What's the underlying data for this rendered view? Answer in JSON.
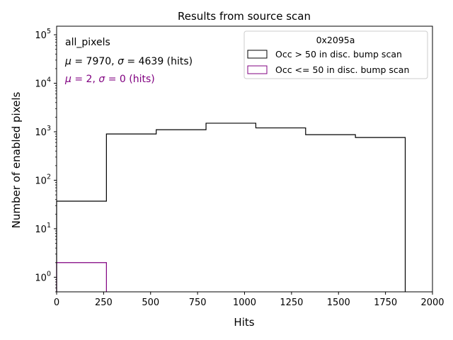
{
  "chart_data": {
    "type": "histogram",
    "title": "Results from source scan",
    "xlabel": "Hits",
    "ylabel": "Number of enabled pixels",
    "xlim": [
      0,
      2000
    ],
    "ylim": [
      0.5,
      150000
    ],
    "yscale": "log",
    "x_ticks": [
      0,
      250,
      500,
      750,
      1000,
      1250,
      1500,
      1750,
      2000
    ],
    "y_ticks": [
      {
        "value": 1,
        "base": "10",
        "exp": "0"
      },
      {
        "value": 10,
        "base": "10",
        "exp": "1"
      },
      {
        "value": 100,
        "base": "10",
        "exp": "2"
      },
      {
        "value": 1000,
        "base": "10",
        "exp": "3"
      },
      {
        "value": 10000,
        "base": "10",
        "exp": "4"
      },
      {
        "value": 100000,
        "base": "10",
        "exp": "5"
      }
    ],
    "bin_edges": [
      0,
      265,
      530,
      795,
      1060,
      1325,
      1590,
      1855
    ],
    "series": [
      {
        "name": "Occ > 50 in disc. bump scan",
        "color": "#000000",
        "values": [
          37,
          900,
          1100,
          1500,
          1200,
          870,
          760
        ]
      },
      {
        "name": "Occ <= 50 in disc. bump scan",
        "color": "#800080",
        "values": [
          2,
          0,
          0,
          0,
          0,
          0,
          0
        ]
      }
    ],
    "annotations": [
      {
        "text": "all_pixels",
        "color": "#000000"
      },
      {
        "prefix": "",
        "mu_symbol": "μ",
        "mid": " = 7970, ",
        "sigma_symbol": "σ",
        "suffix": " = 4639 (hits)",
        "color": "#000000"
      },
      {
        "prefix": "",
        "mu_symbol": "μ",
        "mid": " = 2, ",
        "sigma_symbol": "σ",
        "suffix": " = 0 (hits)",
        "color": "#800080"
      }
    ],
    "legend": {
      "title": "0x2095a",
      "position": "top-right"
    }
  }
}
